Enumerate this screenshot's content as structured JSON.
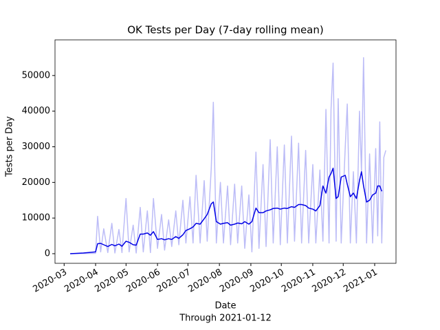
{
  "chart_data": {
    "type": "line",
    "title": "OK Tests per Day (7-day rolling mean)",
    "xlabel": "Date",
    "subtitle": "Through 2021-01-12",
    "ylabel": "Tests per Day",
    "x": [
      "2020-03-07",
      "2020-03-20",
      "2020-04-01",
      "2020-04-03",
      "2020-04-06",
      "2020-04-09",
      "2020-04-13",
      "2020-04-17",
      "2020-04-20",
      "2020-04-24",
      "2020-04-27",
      "2020-05-01",
      "2020-05-04",
      "2020-05-08",
      "2020-05-11",
      "2020-05-15",
      "2020-05-18",
      "2020-05-22",
      "2020-05-25",
      "2020-05-28",
      "2020-06-01",
      "2020-06-05",
      "2020-06-08",
      "2020-06-12",
      "2020-06-15",
      "2020-06-19",
      "2020-06-22",
      "2020-06-26",
      "2020-06-29",
      "2020-07-03",
      "2020-07-06",
      "2020-07-09",
      "2020-07-13",
      "2020-07-17",
      "2020-07-20",
      "2020-07-24",
      "2020-07-26",
      "2020-07-29",
      "2020-08-02",
      "2020-08-05",
      "2020-08-09",
      "2020-08-12",
      "2020-08-16",
      "2020-08-19",
      "2020-08-23",
      "2020-08-26",
      "2020-08-30",
      "2020-09-02",
      "2020-09-06",
      "2020-09-09",
      "2020-09-13",
      "2020-09-16",
      "2020-09-20",
      "2020-09-23",
      "2020-09-27",
      "2020-09-30",
      "2020-10-04",
      "2020-10-07",
      "2020-10-11",
      "2020-10-14",
      "2020-10-18",
      "2020-10-21",
      "2020-10-25",
      "2020-10-28",
      "2020-11-01",
      "2020-11-04",
      "2020-11-08",
      "2020-11-11",
      "2020-11-14",
      "2020-11-17",
      "2020-11-19",
      "2020-11-21",
      "2020-11-24",
      "2020-11-26",
      "2020-11-29",
      "2020-12-03",
      "2020-12-05",
      "2020-12-08",
      "2020-12-11",
      "2020-12-14",
      "2020-12-17",
      "2020-12-19",
      "2020-12-21",
      "2020-12-24",
      "2020-12-27",
      "2020-12-30",
      "2021-01-02",
      "2021-01-04",
      "2021-01-06",
      "2021-01-08",
      "2021-01-10",
      "2021-01-12"
    ],
    "series": [
      {
        "color": "#bcbcf7",
        "values": [
          0,
          50,
          100,
          10500,
          500,
          7000,
          300,
          8500,
          200,
          6800,
          300,
          15500,
          500,
          8000,
          200,
          13000,
          500,
          12000,
          300,
          15500,
          1500,
          11000,
          1000,
          9500,
          2000,
          12000,
          2500,
          15000,
          3000,
          16000,
          3000,
          22000,
          3000,
          20500,
          3500,
          24000,
          42500,
          3000,
          20000,
          3000,
          19000,
          2500,
          19500,
          3000,
          19000,
          1500,
          16500,
          500,
          28500,
          1500,
          25000,
          2000,
          32000,
          3000,
          30000,
          2500,
          30500,
          3000,
          33000,
          3500,
          31000,
          3000,
          29000,
          3000,
          25000,
          3000,
          23500,
          3500,
          40500,
          3000,
          40500,
          53500,
          3500,
          43500,
          3000,
          30000,
          42000,
          3000,
          23000,
          3000,
          40000,
          23000,
          55000,
          3000,
          28000,
          3000,
          29500,
          5000,
          37000,
          3000,
          27000,
          29000
        ]
      },
      {
        "color": "#0000e6",
        "values": [
          0,
          200,
          500,
          2800,
          2900,
          2500,
          2000,
          2600,
          2200,
          2700,
          2100,
          3500,
          3200,
          2500,
          2400,
          5500,
          5500,
          5800,
          5200,
          6200,
          4000,
          4200,
          3900,
          4200,
          4000,
          4800,
          4300,
          5300,
          6500,
          7000,
          7500,
          8500,
          8300,
          9800,
          11000,
          14000,
          14500,
          9000,
          8300,
          8500,
          8700,
          8000,
          8300,
          8600,
          8400,
          9000,
          8300,
          9000,
          12800,
          11500,
          11500,
          12000,
          12300,
          12700,
          12800,
          12500,
          12800,
          12700,
          13200,
          13000,
          13800,
          13800,
          13500,
          12800,
          12500,
          12000,
          13500,
          19000,
          17000,
          21500,
          22500,
          24000,
          15500,
          16000,
          21500,
          22000,
          19500,
          16000,
          17000,
          15500,
          20500,
          23000,
          19000,
          14500,
          15000,
          16500,
          17000,
          19000,
          19000,
          17500,
          null,
          null
        ]
      }
    ],
    "xlim": [
      "2020-02-21",
      "2021-01-22"
    ],
    "xticks": [
      {
        "value": "2020-03-01",
        "label": "2020-03"
      },
      {
        "value": "2020-04-01",
        "label": "2020-04"
      },
      {
        "value": "2020-05-01",
        "label": "2020-05"
      },
      {
        "value": "2020-06-01",
        "label": "2020-06"
      },
      {
        "value": "2020-07-01",
        "label": "2020-07"
      },
      {
        "value": "2020-08-01",
        "label": "2020-08"
      },
      {
        "value": "2020-09-01",
        "label": "2020-09"
      },
      {
        "value": "2020-10-01",
        "label": "2020-10"
      },
      {
        "value": "2020-11-01",
        "label": "2020-11"
      },
      {
        "value": "2020-12-01",
        "label": "2020-12"
      },
      {
        "value": "2021-01-01",
        "label": "2021-01"
      }
    ],
    "ylim": [
      -2700,
      60000
    ],
    "yticks": [
      0,
      10000,
      20000,
      30000,
      40000,
      50000
    ]
  }
}
